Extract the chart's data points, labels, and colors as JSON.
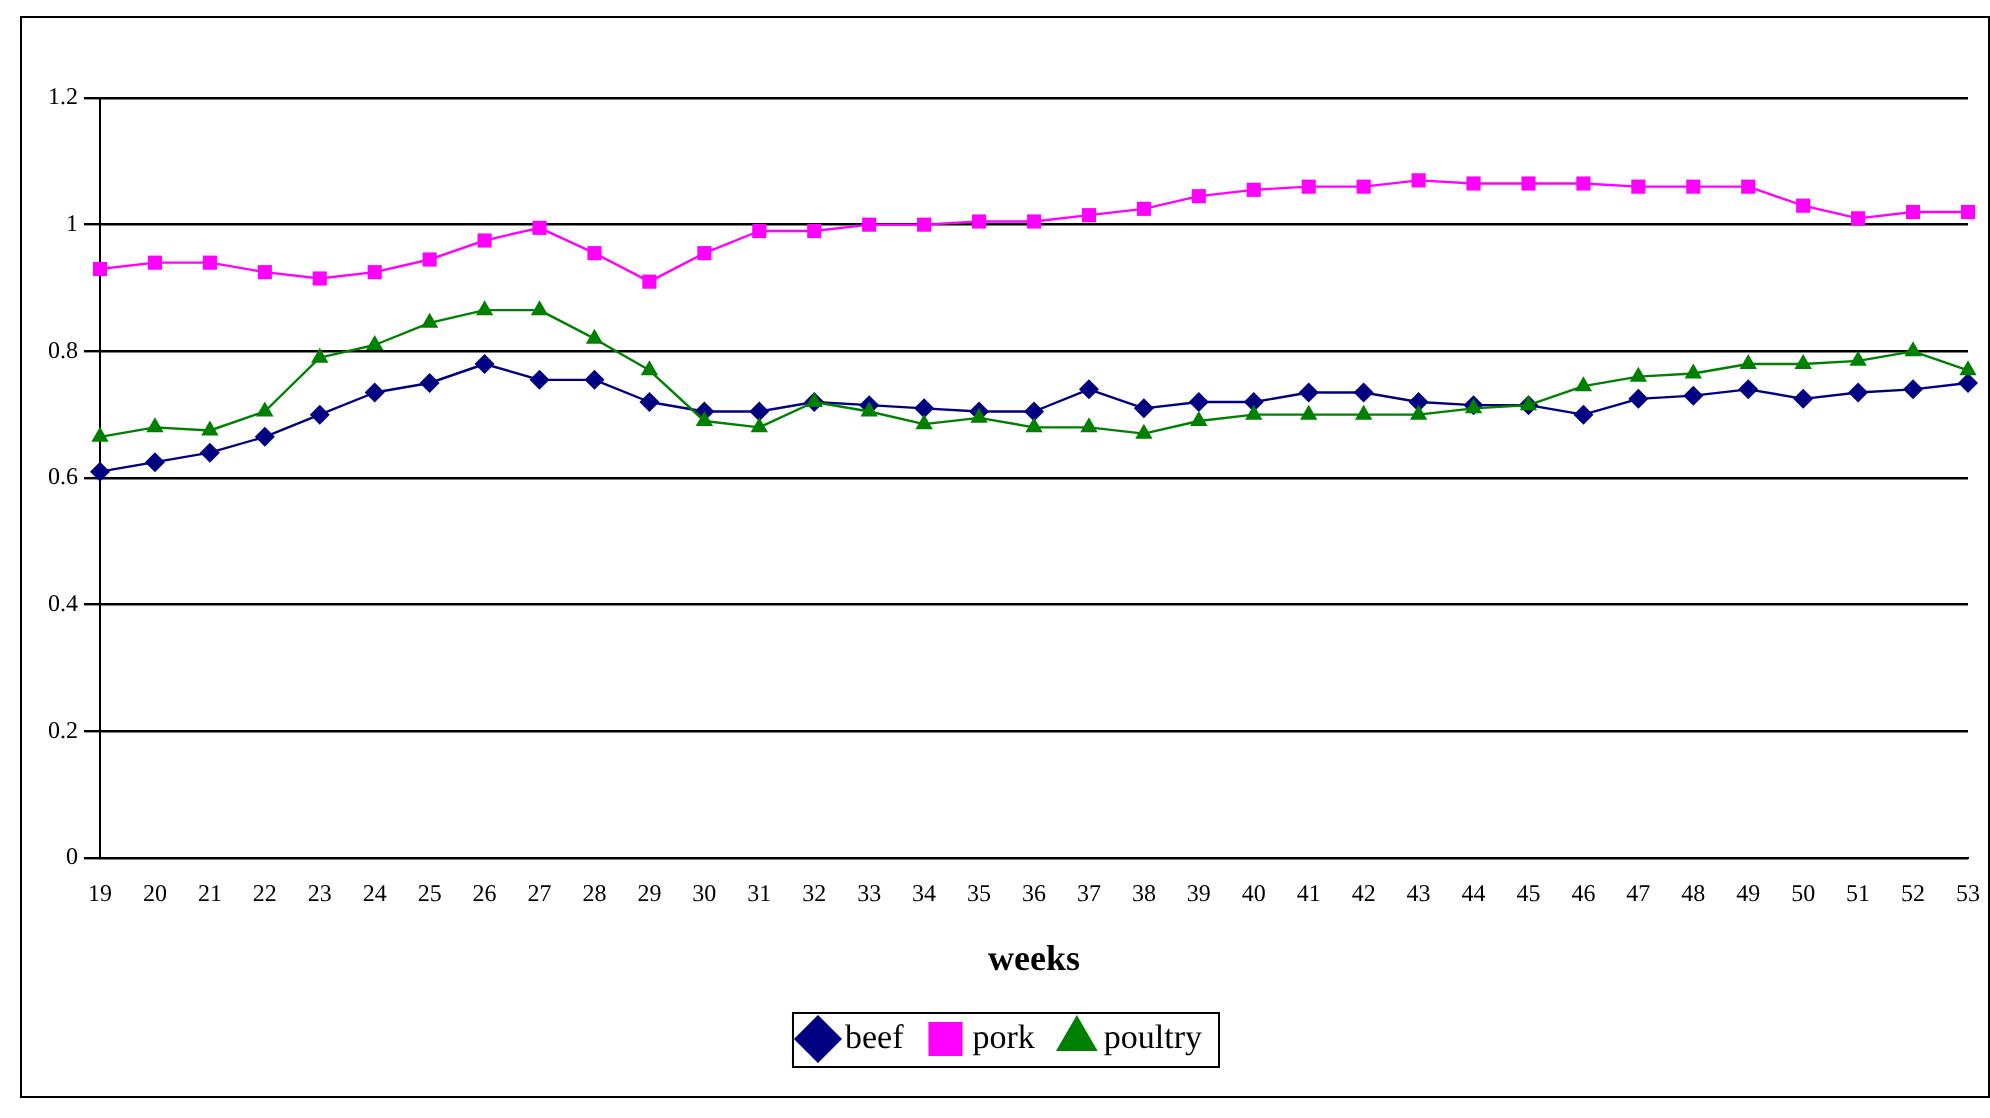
{
  "chart_data": {
    "type": "line",
    "xlabel": "weeks",
    "categories": [
      "19",
      "20",
      "21",
      "22",
      "23",
      "24",
      "25",
      "26",
      "27",
      "28",
      "29",
      "30",
      "31",
      "32",
      "33",
      "34",
      "35",
      "36",
      "37",
      "38",
      "39",
      "40",
      "41",
      "42",
      "43",
      "44",
      "45",
      "46",
      "47",
      "48",
      "49",
      "50",
      "51",
      "52",
      "53"
    ],
    "series": [
      {
        "name": "beef",
        "color": "#000080",
        "marker": "diamond",
        "values": [
          0.61,
          0.625,
          0.64,
          0.665,
          0.7,
          0.735,
          0.75,
          0.78,
          0.755,
          0.755,
          0.72,
          0.705,
          0.705,
          0.72,
          0.715,
          0.71,
          0.705,
          0.705,
          0.74,
          0.71,
          0.72,
          0.72,
          0.735,
          0.735,
          0.72,
          0.715,
          0.715,
          0.7,
          0.725,
          0.73,
          0.74,
          0.725,
          0.735,
          0.74,
          0.75
        ]
      },
      {
        "name": "pork",
        "color": "#ff00ff",
        "marker": "square",
        "values": [
          0.93,
          0.94,
          0.94,
          0.925,
          0.915,
          0.925,
          0.945,
          0.975,
          0.995,
          0.955,
          0.91,
          0.955,
          0.99,
          0.99,
          1.0,
          1.0,
          1.005,
          1.005,
          1.015,
          1.025,
          1.045,
          1.055,
          1.06,
          1.06,
          1.07,
          1.065,
          1.065,
          1.065,
          1.06,
          1.06,
          1.06,
          1.03,
          1.01,
          1.02,
          1.02
        ]
      },
      {
        "name": "poultry",
        "color": "#008000",
        "marker": "triangle",
        "values": [
          0.665,
          0.68,
          0.675,
          0.705,
          0.79,
          0.81,
          0.845,
          0.865,
          0.865,
          0.82,
          0.77,
          0.69,
          0.68,
          0.72,
          0.705,
          0.685,
          0.695,
          0.68,
          0.68,
          0.67,
          0.69,
          0.7,
          0.7,
          0.7,
          0.7,
          0.71,
          0.715,
          0.745,
          0.76,
          0.765,
          0.78,
          0.78,
          0.785,
          0.8,
          0.77
        ]
      }
    ],
    "ylim": [
      0,
      1.2
    ],
    "yticks": [
      0,
      0.2,
      0.4,
      0.6,
      0.8,
      1,
      1.2
    ],
    "grid": "y",
    "legend": "bottom",
    "line_style": "solid"
  }
}
